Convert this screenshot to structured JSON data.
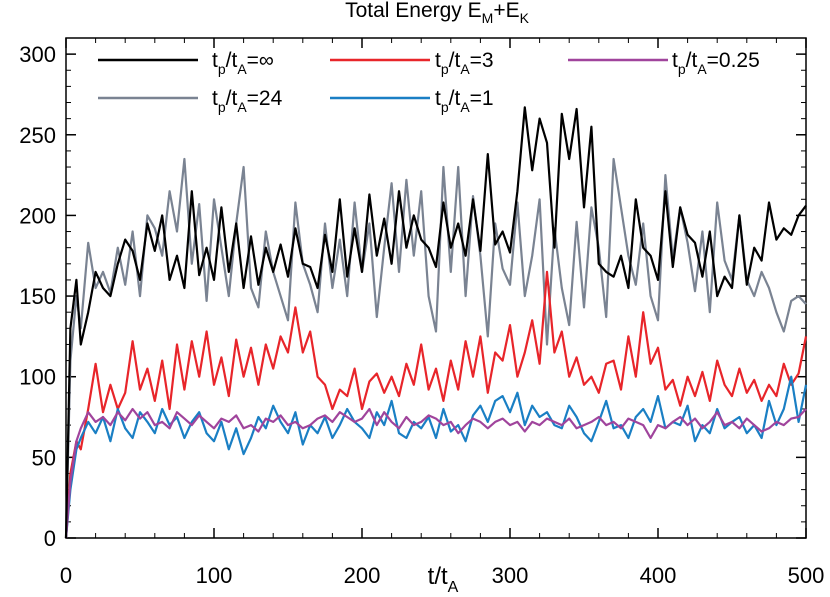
{
  "chart_data": {
    "type": "line",
    "title": "Total Energy E",
    "title_sub_1": "M",
    "title_plus": "+E",
    "title_sub_2": "K",
    "xlabel": "t/t",
    "xlabel_sub": "A",
    "ylabel": "",
    "xlim": [
      0,
      500
    ],
    "ylim": [
      0,
      310
    ],
    "xticks": [
      "0",
      "100",
      "200",
      "300",
      "400",
      "500"
    ],
    "yticks": [
      "0",
      "50",
      "100",
      "150",
      "200",
      "250",
      "300"
    ],
    "grid": false,
    "legend_placement": "top",
    "series": [
      {
        "name": "t_p/t_A=∞",
        "legend_prefix": "t",
        "legend_sub1": "p",
        "legend_mid": "/t",
        "legend_sub2": "A",
        "legend_suffix": "=∞",
        "color": "#000000",
        "x": [
          0,
          3,
          7,
          10,
          15,
          20,
          25,
          30,
          35,
          40,
          45,
          50,
          55,
          60,
          65,
          70,
          75,
          80,
          85,
          90,
          95,
          100,
          105,
          110,
          115,
          120,
          125,
          130,
          135,
          140,
          145,
          150,
          155,
          160,
          165,
          170,
          175,
          180,
          185,
          190,
          195,
          200,
          205,
          210,
          215,
          220,
          225,
          230,
          235,
          240,
          245,
          250,
          255,
          260,
          265,
          270,
          275,
          280,
          285,
          290,
          295,
          300,
          305,
          310,
          315,
          320,
          325,
          330,
          335,
          340,
          345,
          350,
          355,
          360,
          365,
          370,
          375,
          380,
          385,
          390,
          395,
          400,
          405,
          410,
          415,
          420,
          425,
          430,
          435,
          440,
          445,
          450,
          455,
          460,
          465,
          470,
          475,
          480,
          485,
          490,
          495,
          500
        ],
        "values": [
          0,
          130,
          160,
          120,
          140,
          165,
          155,
          150,
          170,
          185,
          178,
          160,
          195,
          178,
          200,
          160,
          175,
          155,
          215,
          163,
          180,
          160,
          205,
          165,
          195,
          155,
          187,
          157,
          180,
          165,
          182,
          162,
          192,
          170,
          168,
          155,
          188,
          165,
          210,
          162,
          192,
          165,
          213,
          175,
          198,
          170,
          215,
          180,
          200,
          185,
          180,
          168,
          208,
          180,
          195,
          175,
          210,
          178,
          238,
          182,
          190,
          177,
          215,
          267,
          228,
          260,
          245,
          180,
          263,
          235,
          266,
          205,
          255,
          170,
          165,
          162,
          175,
          155,
          210,
          180,
          175,
          160,
          215,
          168,
          205,
          188,
          183,
          162,
          190,
          150,
          162,
          155,
          200,
          157,
          180,
          172,
          208,
          185,
          192,
          188,
          200,
          206
        ]
      },
      {
        "name": "t_p/t_A=24",
        "legend_prefix": "t",
        "legend_sub1": "p",
        "legend_mid": "/t",
        "legend_sub2": "A",
        "legend_suffix": "=24",
        "color": "#7a8392",
        "x": [
          0,
          3,
          7,
          10,
          15,
          20,
          25,
          30,
          35,
          40,
          45,
          50,
          55,
          60,
          65,
          70,
          75,
          80,
          85,
          90,
          95,
          100,
          105,
          110,
          115,
          120,
          125,
          130,
          135,
          140,
          145,
          150,
          155,
          160,
          165,
          170,
          175,
          180,
          185,
          190,
          195,
          200,
          205,
          210,
          215,
          220,
          225,
          230,
          235,
          240,
          245,
          250,
          255,
          260,
          265,
          270,
          275,
          280,
          285,
          290,
          295,
          300,
          305,
          310,
          315,
          320,
          325,
          330,
          335,
          340,
          345,
          350,
          355,
          360,
          365,
          370,
          375,
          380,
          385,
          390,
          395,
          400,
          405,
          410,
          415,
          420,
          425,
          430,
          435,
          440,
          445,
          450,
          455,
          460,
          465,
          470,
          475,
          480,
          485,
          490,
          495,
          500
        ],
        "values": [
          0,
          110,
          150,
          130,
          183,
          155,
          165,
          152,
          180,
          157,
          190,
          150,
          200,
          192,
          175,
          215,
          190,
          235,
          170,
          207,
          147,
          210,
          180,
          150,
          195,
          230,
          155,
          143,
          190,
          165,
          150,
          135,
          208,
          170,
          157,
          140,
          195,
          155,
          185,
          150,
          208,
          165,
          195,
          137,
          180,
          220,
          165,
          222,
          175,
          215,
          150,
          128,
          230,
          165,
          230,
          150,
          212,
          175,
          125,
          195,
          167,
          157,
          208,
          150,
          175,
          210,
          120,
          192,
          155,
          132,
          196,
          143,
          205,
          180,
          137,
          235,
          205,
          175,
          157,
          195,
          150,
          135,
          225,
          173,
          205,
          183,
          153,
          190,
          140,
          208,
          172,
          160,
          200,
          160,
          150,
          165,
          155,
          140,
          128,
          147,
          150,
          145
        ]
      },
      {
        "name": "t_p/t_A=3",
        "legend_prefix": "t",
        "legend_sub1": "p",
        "legend_mid": "/t",
        "legend_sub2": "A",
        "legend_suffix": "=3",
        "color": "#e8252a",
        "x": [
          0,
          3,
          7,
          10,
          15,
          20,
          25,
          30,
          35,
          40,
          45,
          50,
          55,
          60,
          65,
          70,
          75,
          80,
          85,
          90,
          95,
          100,
          105,
          110,
          115,
          120,
          125,
          130,
          135,
          140,
          145,
          150,
          155,
          160,
          165,
          170,
          175,
          180,
          185,
          190,
          195,
          200,
          205,
          210,
          215,
          220,
          225,
          230,
          235,
          240,
          245,
          250,
          255,
          260,
          265,
          270,
          275,
          280,
          285,
          290,
          295,
          300,
          305,
          310,
          315,
          320,
          325,
          330,
          335,
          340,
          345,
          350,
          355,
          360,
          365,
          370,
          375,
          380,
          385,
          390,
          395,
          400,
          405,
          410,
          415,
          420,
          425,
          430,
          435,
          440,
          445,
          450,
          455,
          460,
          465,
          470,
          475,
          480,
          485,
          490,
          495,
          500
        ],
        "values": [
          0,
          40,
          60,
          55,
          80,
          108,
          78,
          95,
          80,
          90,
          122,
          92,
          105,
          85,
          110,
          80,
          120,
          92,
          122,
          100,
          128,
          95,
          112,
          88,
          123,
          100,
          118,
          95,
          120,
          105,
          125,
          115,
          143,
          115,
          128,
          100,
          95,
          80,
          92,
          88,
          105,
          80,
          97,
          102,
          90,
          100,
          88,
          108,
          95,
          120,
          92,
          105,
          85,
          110,
          92,
          122,
          100,
          125,
          90,
          115,
          110,
          132,
          100,
          115,
          135,
          108,
          165,
          115,
          128,
          100,
          112,
          95,
          100,
          90,
          108,
          110,
          92,
          125,
          100,
          140,
          108,
          118,
          92,
          98,
          82,
          100,
          88,
          103,
          85,
          110,
          95,
          88,
          105,
          90,
          98,
          85,
          95,
          88,
          108,
          95,
          102,
          125
        ]
      },
      {
        "name": "t_p/t_A=1",
        "legend_prefix": "t",
        "legend_sub1": "p",
        "legend_mid": "/t",
        "legend_sub2": "A",
        "legend_suffix": "=1",
        "color": "#1a7fc4",
        "x": [
          0,
          3,
          7,
          10,
          15,
          20,
          25,
          30,
          35,
          40,
          45,
          50,
          55,
          60,
          65,
          70,
          75,
          80,
          85,
          90,
          95,
          100,
          105,
          110,
          115,
          120,
          125,
          130,
          135,
          140,
          145,
          150,
          155,
          160,
          165,
          170,
          175,
          180,
          185,
          190,
          195,
          200,
          205,
          210,
          215,
          220,
          225,
          230,
          235,
          240,
          245,
          250,
          255,
          260,
          265,
          270,
          275,
          280,
          285,
          290,
          295,
          300,
          305,
          310,
          315,
          320,
          325,
          330,
          335,
          340,
          345,
          350,
          355,
          360,
          365,
          370,
          375,
          380,
          385,
          390,
          395,
          400,
          405,
          410,
          415,
          420,
          425,
          430,
          435,
          440,
          445,
          450,
          455,
          460,
          465,
          470,
          475,
          480,
          485,
          490,
          495,
          500
        ],
        "values": [
          0,
          30,
          55,
          62,
          72,
          65,
          75,
          60,
          80,
          68,
          62,
          78,
          72,
          65,
          80,
          70,
          75,
          62,
          72,
          78,
          65,
          60,
          72,
          55,
          68,
          52,
          62,
          75,
          68,
          82,
          72,
          65,
          78,
          58,
          70,
          65,
          75,
          62,
          70,
          80,
          72,
          68,
          62,
          78,
          70,
          85,
          65,
          62,
          72,
          68,
          75,
          62,
          80,
          66,
          70,
          60,
          76,
          82,
          72,
          85,
          88,
          78,
          90,
          70,
          82,
          75,
          78,
          70,
          68,
          82,
          75,
          65,
          60,
          72,
          85,
          68,
          70,
          62,
          75,
          80,
          72,
          88,
          68,
          72,
          70,
          82,
          60,
          70,
          65,
          80,
          68,
          72,
          75,
          65,
          70,
          62,
          85,
          70,
          80,
          100,
          72,
          95
        ]
      },
      {
        "name": "t_p/t_A=0.25",
        "legend_prefix": "t",
        "legend_sub1": "p",
        "legend_mid": "/t",
        "legend_sub2": "A",
        "legend_suffix": "=0.25",
        "color": "#a0449c",
        "x": [
          0,
          3,
          7,
          10,
          15,
          20,
          25,
          30,
          35,
          40,
          45,
          50,
          55,
          60,
          65,
          70,
          75,
          80,
          85,
          90,
          95,
          100,
          105,
          110,
          115,
          120,
          125,
          130,
          135,
          140,
          145,
          150,
          155,
          160,
          165,
          170,
          175,
          180,
          185,
          190,
          195,
          200,
          205,
          210,
          215,
          220,
          225,
          230,
          235,
          240,
          245,
          250,
          255,
          260,
          265,
          270,
          275,
          280,
          285,
          290,
          295,
          300,
          305,
          310,
          315,
          320,
          325,
          330,
          335,
          340,
          345,
          350,
          355,
          360,
          365,
          370,
          375,
          380,
          385,
          390,
          395,
          400,
          405,
          410,
          415,
          420,
          425,
          430,
          435,
          440,
          445,
          450,
          455,
          460,
          465,
          470,
          475,
          480,
          485,
          490,
          495,
          500
        ],
        "values": [
          0,
          35,
          60,
          68,
          78,
          72,
          75,
          70,
          78,
          73,
          80,
          74,
          78,
          70,
          72,
          68,
          78,
          74,
          70,
          76,
          72,
          68,
          74,
          72,
          76,
          68,
          70,
          66,
          74,
          72,
          76,
          70,
          72,
          68,
          70,
          74,
          76,
          72,
          78,
          75,
          72,
          74,
          80,
          70,
          78,
          72,
          68,
          75,
          70,
          72,
          76,
          74,
          70,
          72,
          65,
          70,
          74,
          72,
          68,
          72,
          74,
          70,
          72,
          66,
          72,
          70,
          74,
          72,
          70,
          74,
          68,
          70,
          72,
          75,
          70,
          72,
          68,
          74,
          72,
          70,
          62,
          70,
          68,
          72,
          75,
          70,
          74,
          68,
          72,
          78,
          70,
          72,
          68,
          74,
          70,
          66,
          68,
          72,
          70,
          74,
          75,
          80
        ]
      }
    ]
  }
}
